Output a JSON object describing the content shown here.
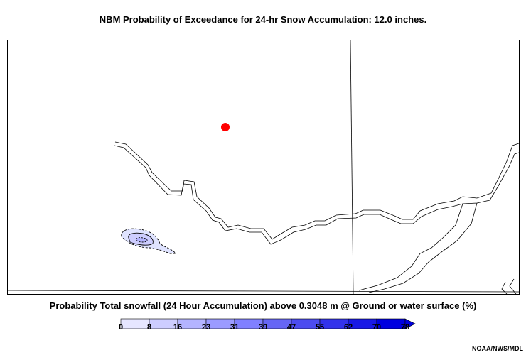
{
  "header": {
    "title": "NBM Probability of Exceedance for 24-hr Snow Accumulation: 12.0 inches."
  },
  "map": {
    "marker_color": "#ff0000",
    "region_fill": "#dfe3ff",
    "boundary_color": "#000000"
  },
  "legend": {
    "title": "Probability Total snowfall (24 Hour Accumulation) above 0.3048 m @ Ground or water surface (%)",
    "ticks": [
      "0",
      "8",
      "16",
      "23",
      "31",
      "39",
      "47",
      "55",
      "62",
      "70",
      "78"
    ],
    "colors": [
      "#ffffff",
      "#e6e6ff",
      "#cdcdff",
      "#b4b4ff",
      "#9b9bff",
      "#8080ff",
      "#6666f5",
      "#4c4cf0",
      "#3333eb",
      "#1919e6",
      "#0000e0"
    ]
  },
  "footer": {
    "credit": "NOAA/NWS/MDL"
  }
}
